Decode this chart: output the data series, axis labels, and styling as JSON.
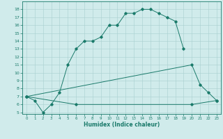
{
  "line1_x": [
    0,
    1,
    2,
    3,
    4,
    5,
    6,
    7,
    8,
    9,
    10,
    11,
    12,
    13,
    14,
    15,
    16,
    17,
    18,
    19
  ],
  "line1_y": [
    7.0,
    6.5,
    5.0,
    6.0,
    7.5,
    11.0,
    13.0,
    14.0,
    14.0,
    14.5,
    16.0,
    16.0,
    17.5,
    17.5,
    18.0,
    18.0,
    17.5,
    17.0,
    16.5,
    13.0
  ],
  "line2_x": [
    0,
    20,
    21,
    22,
    23
  ],
  "line2_y": [
    7.0,
    11.0,
    8.5,
    7.5,
    6.5
  ],
  "line3_x": [
    0,
    6,
    20,
    23
  ],
  "line3_y": [
    7.0,
    6.0,
    6.0,
    6.5
  ],
  "color": "#1a7a6a",
  "bg_color": "#d0ebeb",
  "grid_color": "#a8d0d0",
  "xlabel": "Humidex (Indice chaleur)",
  "xlim": [
    -0.5,
    23.5
  ],
  "ylim": [
    4.8,
    19.0
  ],
  "yticks": [
    5,
    6,
    7,
    8,
    9,
    10,
    11,
    12,
    13,
    14,
    15,
    16,
    17,
    18
  ],
  "xticks": [
    0,
    1,
    2,
    3,
    4,
    5,
    6,
    7,
    8,
    9,
    10,
    11,
    12,
    13,
    14,
    15,
    16,
    17,
    18,
    19,
    20,
    21,
    22,
    23
  ]
}
